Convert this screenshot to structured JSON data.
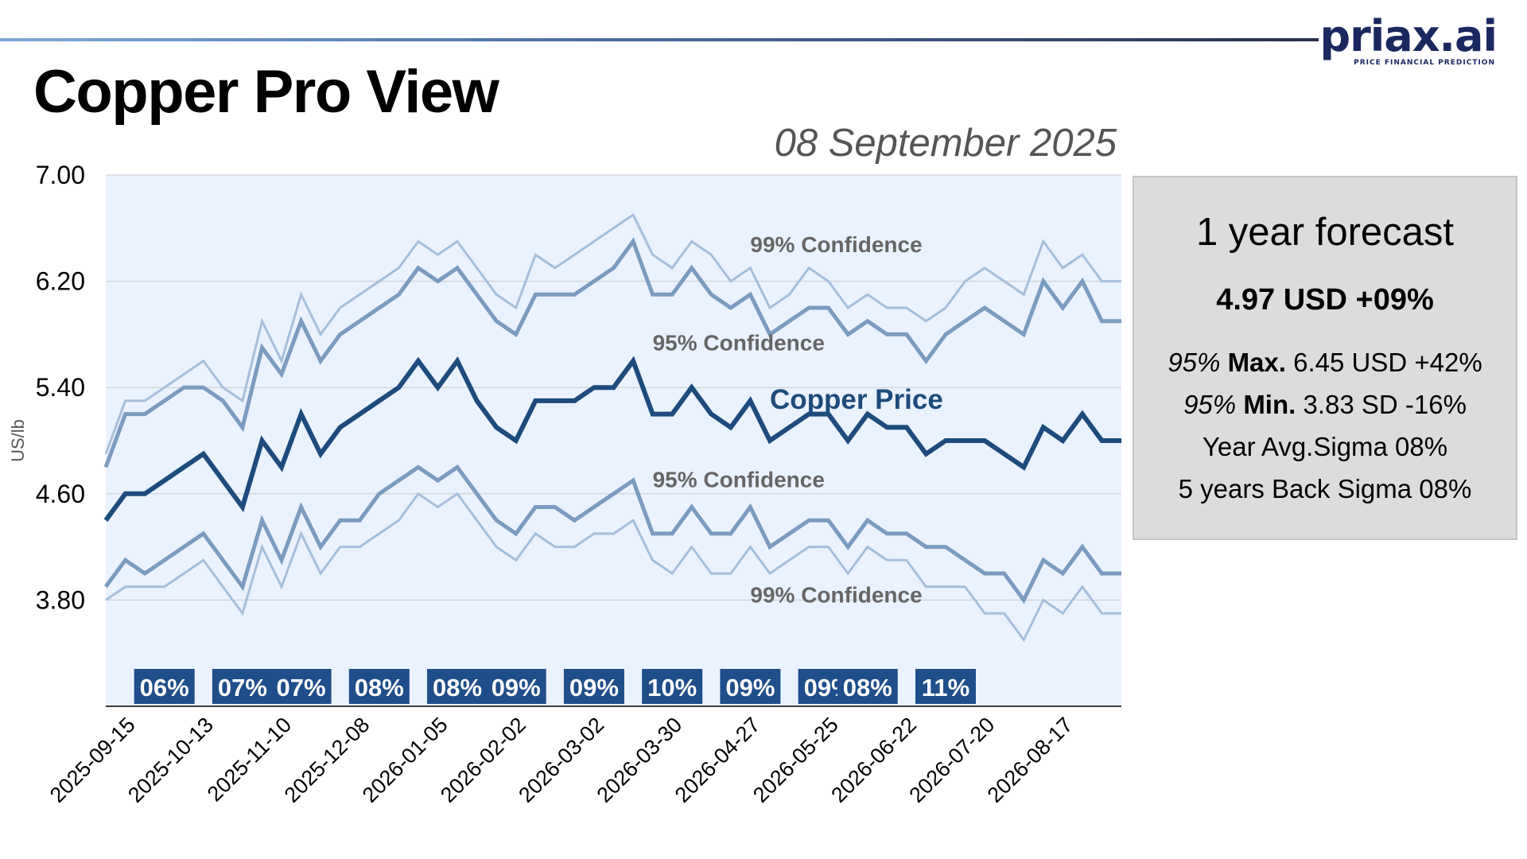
{
  "header": {
    "title": "Copper Pro View",
    "date": "08 September 2025",
    "logo_text": "priax.ai",
    "logo_tagline": "PRICE FINANCIAL PREDICTION"
  },
  "info_box": {
    "title": "1 year forecast",
    "main_value": "4.97 USD +09%",
    "max_prefix": "95%",
    "max_label": "Max.",
    "max_value": "6.45 USD +42%",
    "min_prefix": "95%",
    "min_label": "Min.",
    "min_value": "3.83 SD -16%",
    "avg_sigma": "Year Avg.Sigma 08%",
    "back_sigma": "5 years Back Sigma 08%"
  },
  "colors": {
    "plot_background": "#eaf2fd",
    "gridline": "#c9ccd2",
    "price_line": "#1d4b7d",
    "conf95_line": "#7b9cc0",
    "conf99_line": "#a7bfda",
    "band_label_text": "#666666",
    "sigma_box": "#1f4e8a",
    "logo": "#1b2860"
  },
  "chart_data": {
    "type": "line",
    "ylabel": "US/lb",
    "xlabel": "",
    "ylim": [
      3.0,
      7.0
    ],
    "ytick_labels": [
      "7.00",
      "6.20",
      "5.40",
      "4.60",
      "3.80"
    ],
    "xtick_labels": [
      "2025-09-15",
      "2025-10-13",
      "2025-11-10",
      "2025-12-08",
      "2026-01-05",
      "2026-02-02",
      "2026-03-02",
      "2026-03-30",
      "2026-04-27",
      "2026-05-25",
      "2026-06-22",
      "2026-07-20",
      "2026-08-17"
    ],
    "x": [
      "2025-09-08",
      "2025-09-15",
      "2025-09-22",
      "2025-09-29",
      "2025-10-06",
      "2025-10-13",
      "2025-10-20",
      "2025-10-27",
      "2025-11-03",
      "2025-11-10",
      "2025-11-17",
      "2025-11-24",
      "2025-12-01",
      "2025-12-08",
      "2025-12-15",
      "2025-12-22",
      "2025-12-29",
      "2026-01-05",
      "2026-01-12",
      "2026-01-19",
      "2026-01-26",
      "2026-02-02",
      "2026-02-09",
      "2026-02-16",
      "2026-02-23",
      "2026-03-02",
      "2026-03-09",
      "2026-03-16",
      "2026-03-23",
      "2026-03-30",
      "2026-04-06",
      "2026-04-13",
      "2026-04-20",
      "2026-04-27",
      "2026-05-04",
      "2026-05-11",
      "2026-05-18",
      "2026-05-25",
      "2026-06-01",
      "2026-06-08",
      "2026-06-15",
      "2026-06-22",
      "2026-06-29",
      "2026-07-06",
      "2026-07-13",
      "2026-07-20",
      "2026-07-27",
      "2026-08-03",
      "2026-08-10",
      "2026-08-17",
      "2026-08-24",
      "2026-08-31",
      "2026-09-07"
    ],
    "series": [
      {
        "name": "Copper Price",
        "role": "price",
        "values": [
          4.4,
          4.6,
          4.6,
          4.7,
          4.8,
          4.9,
          4.7,
          4.5,
          5.0,
          4.8,
          5.2,
          4.9,
          5.1,
          5.2,
          5.3,
          5.4,
          5.6,
          5.4,
          5.6,
          5.3,
          5.1,
          5.0,
          5.3,
          5.3,
          5.3,
          5.4,
          5.4,
          5.6,
          5.2,
          5.2,
          5.4,
          5.2,
          5.1,
          5.3,
          5.0,
          5.1,
          5.2,
          5.2,
          5.0,
          5.2,
          5.1,
          5.1,
          4.9,
          5.0,
          5.0,
          5.0,
          4.9,
          4.8,
          5.1,
          5.0,
          5.2,
          5.0,
          5.0
        ]
      },
      {
        "name": "95% Confidence",
        "role": "upper95",
        "values": [
          4.8,
          5.2,
          5.2,
          5.3,
          5.4,
          5.4,
          5.3,
          5.1,
          5.7,
          5.5,
          5.9,
          5.6,
          5.8,
          5.9,
          6.0,
          6.1,
          6.3,
          6.2,
          6.3,
          6.1,
          5.9,
          5.8,
          6.1,
          6.1,
          6.1,
          6.2,
          6.3,
          6.5,
          6.1,
          6.1,
          6.3,
          6.1,
          6.0,
          6.1,
          5.8,
          5.9,
          6.0,
          6.0,
          5.8,
          5.9,
          5.8,
          5.8,
          5.6,
          5.8,
          5.9,
          6.0,
          5.9,
          5.8,
          6.2,
          6.0,
          6.2,
          5.9,
          5.9
        ]
      },
      {
        "name": "99% Confidence",
        "role": "upper99",
        "values": [
          4.9,
          5.3,
          5.3,
          5.4,
          5.5,
          5.6,
          5.4,
          5.3,
          5.9,
          5.6,
          6.1,
          5.8,
          6.0,
          6.1,
          6.2,
          6.3,
          6.5,
          6.4,
          6.5,
          6.3,
          6.1,
          6.0,
          6.4,
          6.3,
          6.4,
          6.5,
          6.6,
          6.7,
          6.4,
          6.3,
          6.5,
          6.4,
          6.2,
          6.3,
          6.0,
          6.1,
          6.3,
          6.2,
          6.0,
          6.1,
          6.0,
          6.0,
          5.9,
          6.0,
          6.2,
          6.3,
          6.2,
          6.1,
          6.5,
          6.3,
          6.4,
          6.2,
          6.2
        ]
      },
      {
        "name": "95% Confidence",
        "role": "lower95",
        "values": [
          3.9,
          4.1,
          4.0,
          4.1,
          4.2,
          4.3,
          4.1,
          3.9,
          4.4,
          4.1,
          4.5,
          4.2,
          4.4,
          4.4,
          4.6,
          4.7,
          4.8,
          4.7,
          4.8,
          4.6,
          4.4,
          4.3,
          4.5,
          4.5,
          4.4,
          4.5,
          4.6,
          4.7,
          4.3,
          4.3,
          4.5,
          4.3,
          4.3,
          4.5,
          4.2,
          4.3,
          4.4,
          4.4,
          4.2,
          4.4,
          4.3,
          4.3,
          4.2,
          4.2,
          4.1,
          4.0,
          4.0,
          3.8,
          4.1,
          4.0,
          4.2,
          4.0,
          4.0
        ]
      },
      {
        "name": "99% Confidence",
        "role": "lower99",
        "values": [
          3.8,
          3.9,
          3.9,
          3.9,
          4.0,
          4.1,
          3.9,
          3.7,
          4.2,
          3.9,
          4.3,
          4.0,
          4.2,
          4.2,
          4.3,
          4.4,
          4.6,
          4.5,
          4.6,
          4.4,
          4.2,
          4.1,
          4.3,
          4.2,
          4.2,
          4.3,
          4.3,
          4.4,
          4.1,
          4.0,
          4.2,
          4.0,
          4.0,
          4.2,
          4.0,
          4.1,
          4.2,
          4.2,
          4.0,
          4.2,
          4.1,
          4.1,
          3.9,
          3.9,
          3.9,
          3.7,
          3.7,
          3.5,
          3.8,
          3.7,
          3.9,
          3.7,
          3.7
        ]
      }
    ],
    "line_labels": [
      {
        "text": "99% Confidence",
        "series_role": "upper99",
        "x": "2026-04-27",
        "y": 6.42
      },
      {
        "text": "95% Confidence",
        "series_role": "upper95",
        "x": "2026-03-23",
        "y": 5.68
      },
      {
        "text": "Copper Price",
        "series_role": "price",
        "x": "2026-05-04",
        "y": 5.24
      },
      {
        "text": "95% Confidence",
        "series_role": "lower95",
        "x": "2026-03-23",
        "y": 4.65
      },
      {
        "text": "99% Confidence",
        "series_role": "lower99",
        "x": "2026-04-27",
        "y": 3.78
      }
    ],
    "sigma_badges": [
      {
        "text": "06%",
        "x": "2025-09-29"
      },
      {
        "text": "07%",
        "x": "2025-10-27"
      },
      {
        "text": "07%",
        "x": "2025-11-17"
      },
      {
        "text": "08%",
        "x": "2025-12-15"
      },
      {
        "text": "08%",
        "x": "2026-01-12"
      },
      {
        "text": "09%",
        "x": "2026-02-02"
      },
      {
        "text": "09%",
        "x": "2026-03-02"
      },
      {
        "text": "10%",
        "x": "2026-03-30"
      },
      {
        "text": "09%",
        "x": "2026-04-27"
      },
      {
        "text": "09%",
        "x": "2026-05-25"
      },
      {
        "text": "08%",
        "x": "2026-06-08"
      },
      {
        "text": "11%",
        "x": "2026-07-06"
      }
    ],
    "grid": true,
    "legend": "none"
  }
}
